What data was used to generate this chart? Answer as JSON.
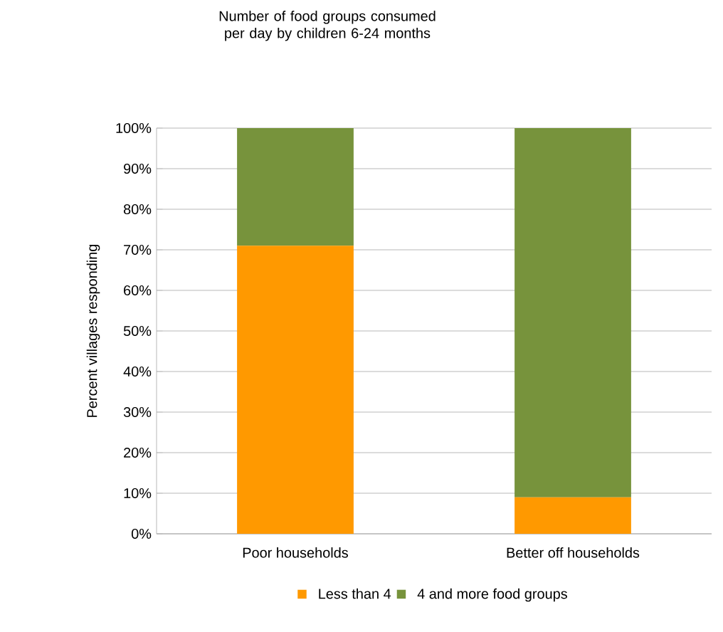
{
  "chart_data": {
    "type": "bar",
    "title": "Number of food groups consumed per day by children 6-24 months",
    "ylabel": "Percent villages responding",
    "categories": [
      "Poor households",
      "Better off households"
    ],
    "stacked": true,
    "series": [
      {
        "name": "Less than 4",
        "color": "#ff9900",
        "values": [
          71,
          9
        ]
      },
      {
        "name": "4 and more food groups",
        "color": "#77933c",
        "values": [
          29,
          91
        ]
      }
    ],
    "ylim": [
      0,
      100
    ],
    "yticks": [
      {
        "value": 0,
        "label": "0%"
      },
      {
        "value": 10,
        "label": "10%"
      },
      {
        "value": 20,
        "label": "20%"
      },
      {
        "value": 30,
        "label": "30%"
      },
      {
        "value": 40,
        "label": "40%"
      },
      {
        "value": 50,
        "label": "50%"
      },
      {
        "value": 60,
        "label": "60%"
      },
      {
        "value": 70,
        "label": "70%"
      },
      {
        "value": 80,
        "label": "80%"
      },
      {
        "value": 90,
        "label": "90%"
      },
      {
        "value": 100,
        "label": "100%"
      }
    ],
    "grid": "y",
    "legend": "bottom"
  }
}
